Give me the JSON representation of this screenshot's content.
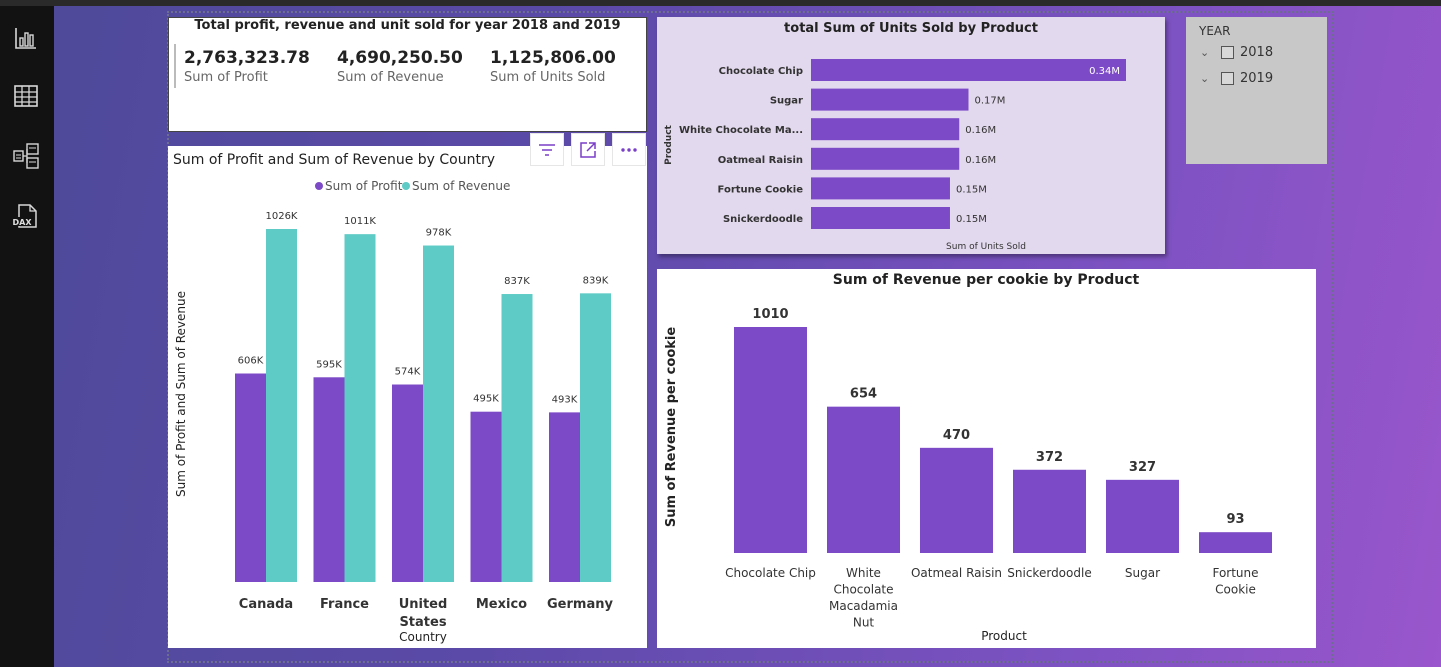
{
  "kpi": {
    "title": "Total profit, revenue and unit sold for year 2018 and 2019",
    "items": [
      {
        "value": "2,763,323.78",
        "label": "Sum of Profit"
      },
      {
        "value": "4,690,250.50",
        "label": "Sum of Revenue"
      },
      {
        "value": "1,125,806.00",
        "label": "Sum of Units Sold"
      }
    ]
  },
  "nav_icons": [
    "report-view-icon",
    "table-view-icon",
    "model-view-icon",
    "dax-query-icon"
  ],
  "nav_dax_label": "DAX",
  "visual_toolbar": [
    "filter-icon",
    "focus-mode-icon",
    "more-options-icon"
  ],
  "slicer": {
    "title": "YEAR",
    "options": [
      {
        "label": "2018",
        "checked": false
      },
      {
        "label": "2019",
        "checked": false
      }
    ]
  },
  "colors": {
    "profit": "#7c4ac6",
    "revenue": "#5ecbc6",
    "units_bar": "#7c4ac6",
    "rev_bar": "#7c4ac6"
  },
  "chart_data": [
    {
      "type": "bar",
      "title": "Sum of Profit and Sum of Revenue by Country",
      "xlabel": "Country",
      "ylabel": "Sum of Profit and Sum of Revenue",
      "categories": [
        "Canada",
        "France",
        "United States",
        "Mexico",
        "Germany"
      ],
      "series": [
        {
          "name": "Sum of Profit",
          "values": [
            606000,
            595000,
            574000,
            495000,
            493000
          ],
          "labels": [
            "606K",
            "595K",
            "574K",
            "495K",
            "493K"
          ]
        },
        {
          "name": "Sum of Revenue",
          "values": [
            1026000,
            1011000,
            978000,
            837000,
            839000
          ],
          "labels": [
            "1026K",
            "1011K",
            "978K",
            "837K",
            "839K"
          ]
        }
      ],
      "ylim": [
        0,
        1026000
      ],
      "legend": "top-center",
      "grid": false
    },
    {
      "type": "bar",
      "orientation": "horizontal",
      "title": "total Sum of Units Sold by Product",
      "xlabel": "Sum of Units Sold",
      "ylabel": "Product",
      "categories": [
        "Chocolate Chip",
        "Sugar",
        "White Chocolate Ma...",
        "Oatmeal Raisin",
        "Fortune Cookie",
        "Snickerdoodle"
      ],
      "values": [
        340000,
        170000,
        160000,
        160000,
        150000,
        150000
      ],
      "labels": [
        "0.34M",
        "0.17M",
        "0.16M",
        "0.16M",
        "0.15M",
        "0.15M"
      ],
      "xlim": [
        0,
        340000
      ],
      "grid": false
    },
    {
      "type": "bar",
      "title": "Sum of Revenue per cookie by Product",
      "xlabel": "Product",
      "ylabel": "Sum of Revenue per cookie",
      "categories": [
        [
          "Chocolate Chip"
        ],
        [
          "White",
          "Chocolate",
          "Macadamia",
          "Nut"
        ],
        [
          "Oatmeal Raisin"
        ],
        [
          "Snickerdoodle"
        ],
        [
          "Sugar"
        ],
        [
          "Fortune",
          "Cookie"
        ]
      ],
      "values": [
        1010,
        654,
        470,
        372,
        327,
        93
      ],
      "labels": [
        "1010",
        "654",
        "470",
        "372",
        "327",
        "93"
      ],
      "ylim": [
        0,
        1010
      ],
      "grid": false
    }
  ]
}
